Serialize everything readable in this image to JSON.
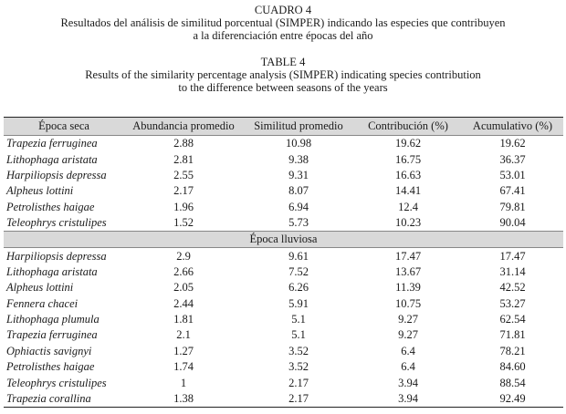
{
  "captions": {
    "es_title": "CUADRO 4",
    "es_line1": "Resultados del análisis de similitud porcentual (SIMPER) indicando las especies que contribuyen",
    "es_line2": "a la diferenciación entre épocas del año",
    "en_title": "TABLE 4",
    "en_line1": "Results of the similarity percentage analysis (SIMPER) indicating species contribution",
    "en_line2": "to the difference between seasons of the years"
  },
  "table": {
    "headers": [
      "Época seca",
      "Abundancia promedio",
      "Similitud promedio",
      "Contribución (%)",
      "Acumulativo (%)"
    ],
    "seca_rows": [
      [
        "Trapezia ferruginea",
        "2.88",
        "10.98",
        "19.62",
        "19.62"
      ],
      [
        "Lithophaga aristata",
        "2.81",
        "9.38",
        "16.75",
        "36.37"
      ],
      [
        "Harpiliopsis depressa",
        "2.55",
        "9.31",
        "16.63",
        "53.01"
      ],
      [
        "Alpheus lottini",
        "2.17",
        "8.07",
        "14.41",
        "67.41"
      ],
      [
        "Petrolisthes haigae",
        "1.96",
        "6.94",
        "12.4",
        "79.81"
      ],
      [
        "Teleophrys cristulipes",
        "1.52",
        "5.73",
        "10.23",
        "90.04"
      ]
    ],
    "lluviosa_label": "Época lluviosa",
    "lluviosa_rows": [
      [
        "Harpiliopsis depressa",
        "2.9",
        "9.61",
        "17.47",
        "17.47"
      ],
      [
        "Lithophaga aristata",
        "2.66",
        "7.52",
        "13.67",
        "31.14"
      ],
      [
        "Alpheus lottini",
        "2.05",
        "6.26",
        "11.39",
        "42.52"
      ],
      [
        "Fennera chacei",
        "2.44",
        "5.91",
        "10.75",
        "53.27"
      ],
      [
        "Lithophaga plumula",
        "1.81",
        "5.1",
        "9.27",
        "62.54"
      ],
      [
        "Trapezia ferruginea",
        "2.1",
        "5.1",
        "9.27",
        "71.81"
      ],
      [
        "Ophiactis savignyi",
        "1.27",
        "3.52",
        "6.4",
        "78.21"
      ],
      [
        "Petrolisthes haigae",
        "1.74",
        "3.52",
        "6.4",
        "84.60"
      ],
      [
        "Teleophrys cristulipes",
        "1",
        "2.17",
        "3.94",
        "88.54"
      ],
      [
        "Trapezia corallina",
        "1.38",
        "2.17",
        "3.94",
        "92.49"
      ]
    ]
  }
}
